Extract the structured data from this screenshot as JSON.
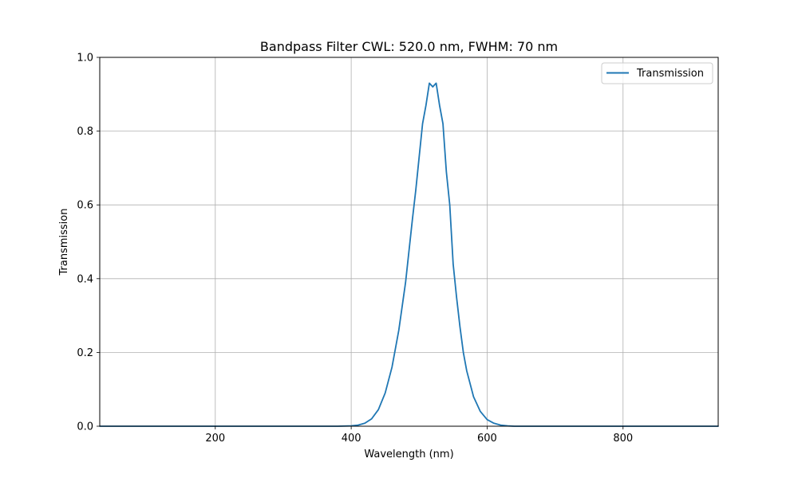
{
  "chart_data": {
    "type": "line",
    "title": "Bandpass Filter CWL: 520.0 nm, FWHM: 70 nm",
    "xlabel": "Wavelength (nm)",
    "ylabel": "Transmission",
    "xlim": [
      30,
      940
    ],
    "ylim": [
      0.0,
      1.0
    ],
    "xticks": [
      200,
      400,
      600,
      800
    ],
    "xtick_labels": [
      "200",
      "400",
      "600",
      "800"
    ],
    "yticks": [
      0.0,
      0.2,
      0.4,
      0.6,
      0.8,
      1.0
    ],
    "ytick_labels": [
      "0.0",
      "0.2",
      "0.4",
      "0.6",
      "0.8",
      "1.0"
    ],
    "grid": true,
    "legend": {
      "placement": "top-right",
      "entries": [
        "Transmission"
      ]
    },
    "series": [
      {
        "name": "Transmission",
        "color": "#1f77b4",
        "x": [
          30,
          100,
          200,
          300,
          380,
          400,
          410,
          420,
          430,
          440,
          450,
          460,
          470,
          480,
          490,
          495,
          500,
          505,
          510,
          515,
          520,
          525,
          530,
          535,
          540,
          545,
          550,
          555,
          560,
          565,
          570,
          580,
          590,
          600,
          610,
          620,
          630,
          640,
          660,
          700,
          800,
          940
        ],
        "y": [
          0.0,
          0.0,
          0.0,
          0.0,
          0.0,
          0.001,
          0.003,
          0.008,
          0.02,
          0.045,
          0.09,
          0.16,
          0.26,
          0.39,
          0.56,
          0.64,
          0.73,
          0.82,
          0.87,
          0.93,
          0.92,
          0.93,
          0.87,
          0.82,
          0.69,
          0.6,
          0.44,
          0.35,
          0.27,
          0.2,
          0.15,
          0.08,
          0.04,
          0.018,
          0.008,
          0.003,
          0.001,
          0.0,
          0.0,
          0.0,
          0.0,
          0.0
        ]
      }
    ]
  }
}
